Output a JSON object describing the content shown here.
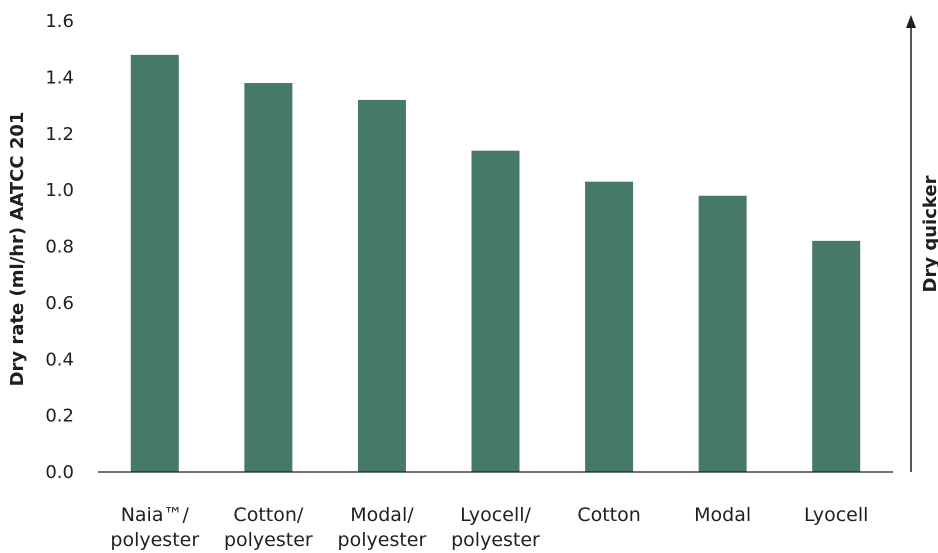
{
  "chart_data": {
    "type": "bar",
    "title": "",
    "categories": [
      [
        "Naia™/",
        "polyester"
      ],
      [
        "Cotton/",
        "polyester"
      ],
      [
        "Modal/",
        "polyester"
      ],
      [
        "Lyocell/",
        "polyester"
      ],
      [
        "Cotton"
      ],
      [
        "Modal"
      ],
      [
        "Lyocell"
      ]
    ],
    "values": [
      1.48,
      1.38,
      1.32,
      1.14,
      1.03,
      0.98,
      0.82
    ],
    "ylabel": "Dry rate (ml/hr) AATCC 201",
    "xlabel": "",
    "ylim": [
      0,
      1.6
    ],
    "yticks": [
      0.0,
      0.2,
      0.4,
      0.6,
      0.8,
      1.0,
      1.2,
      1.4,
      1.6
    ],
    "ytick_labels": [
      "0.0",
      "0.2",
      "0.4",
      "0.6",
      "0.8",
      "1.0",
      "1.2",
      "1.4",
      "1.6"
    ],
    "grid": false,
    "bar_color": "#467a66",
    "annotation": {
      "text": "Dry quicker",
      "arrow": "up"
    }
  }
}
